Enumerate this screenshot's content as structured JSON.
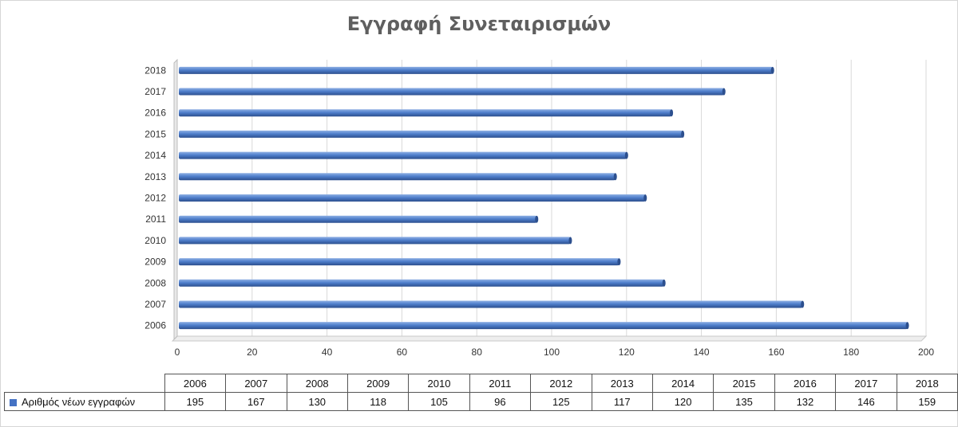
{
  "chart_data": {
    "type": "bar",
    "orientation": "horizontal",
    "title": "Εγγραφή Συνεταιρισμών",
    "categories": [
      "2006",
      "2007",
      "2008",
      "2009",
      "2010",
      "2011",
      "2012",
      "2013",
      "2014",
      "2015",
      "2016",
      "2017",
      "2018"
    ],
    "series": [
      {
        "name": "Αριθμός νέων εγγραφών",
        "values": [
          195,
          167,
          130,
          118,
          105,
          96,
          125,
          117,
          120,
          135,
          132,
          146,
          159
        ]
      }
    ],
    "xlim": [
      0,
      200
    ],
    "xticks": [
      0,
      20,
      40,
      60,
      80,
      100,
      120,
      140,
      160,
      180,
      200
    ],
    "grid": true,
    "legend": "data-table-below",
    "bar_color": "#4472c4"
  },
  "table": {
    "series_label": "Αριθμός νέων εγγραφών",
    "years": [
      "2006",
      "2007",
      "2008",
      "2009",
      "2010",
      "2011",
      "2012",
      "2013",
      "2014",
      "2015",
      "2016",
      "2017",
      "2018"
    ],
    "values": [
      "195",
      "167",
      "130",
      "118",
      "105",
      "96",
      "125",
      "117",
      "120",
      "135",
      "132",
      "146",
      "159"
    ]
  }
}
